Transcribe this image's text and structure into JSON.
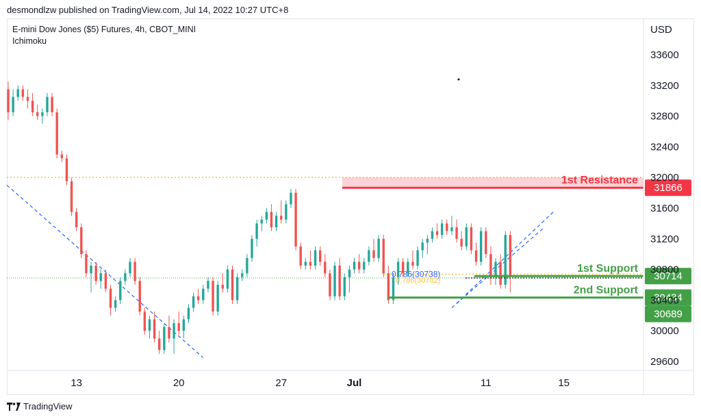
{
  "publisher": "desmondlzw published on TradingView.com, Jul 14, 2022 10:27 UTC+8",
  "legend": {
    "line1": "E-mini Dow Jones ($5) Futures, 4h, CBOT_MINI",
    "line2": "Ichimoku"
  },
  "brand": "TradingView",
  "axis": {
    "currency": "USD"
  },
  "colors": {
    "up": "#26a69a",
    "down": "#ef5350",
    "resistance": "#f23645",
    "support": "#43a047",
    "trend": "#2962ff",
    "dotted": "#f6c244"
  },
  "chart_data": {
    "type": "candlestick",
    "ylim": [
      29500,
      33900
    ],
    "y_ticks": [
      29600,
      30000,
      30400,
      30800,
      31200,
      31600,
      32000,
      32400,
      32800,
      33200,
      33600
    ],
    "x_ticks": [
      {
        "label": "13",
        "index": 14
      },
      {
        "label": "20",
        "index": 35
      },
      {
        "label": "27",
        "index": 56
      },
      {
        "label": "Jul",
        "index": 71
      },
      {
        "label": "11",
        "index": 98
      },
      {
        "label": "15",
        "index": 114
      }
    ],
    "candles": [
      [
        33150,
        33250,
        32750,
        32850
      ],
      [
        32850,
        33150,
        32800,
        33050
      ],
      [
        33050,
        33200,
        33000,
        33150
      ],
      [
        33150,
        33200,
        33000,
        33050
      ],
      [
        33050,
        33150,
        32900,
        33000
      ],
      [
        33000,
        33100,
        32800,
        32850
      ],
      [
        32850,
        32950,
        32750,
        32800
      ],
      [
        32800,
        32900,
        32700,
        32850
      ],
      [
        32850,
        33100,
        32800,
        33050
      ],
      [
        33050,
        33100,
        32800,
        32850
      ],
      [
        32850,
        32900,
        32250,
        32300
      ],
      [
        32300,
        32350,
        32200,
        32250
      ],
      [
        32250,
        32300,
        31900,
        31950
      ],
      [
        31950,
        32000,
        31500,
        31550
      ],
      [
        31550,
        31600,
        31300,
        31350
      ],
      [
        31350,
        31400,
        30950,
        31000
      ],
      [
        31000,
        31050,
        30700,
        30750
      ],
      [
        30750,
        30900,
        30500,
        30850
      ],
      [
        30850,
        30900,
        30600,
        30650
      ],
      [
        30650,
        30800,
        30550,
        30750
      ],
      [
        30750,
        30800,
        30500,
        30550
      ],
      [
        30550,
        30600,
        30200,
        30300
      ],
      [
        30300,
        30450,
        30250,
        30400
      ],
      [
        30400,
        30700,
        30350,
        30650
      ],
      [
        30650,
        30800,
        30600,
        30750
      ],
      [
        30750,
        30950,
        30700,
        30900
      ],
      [
        30900,
        30950,
        30600,
        30650
      ],
      [
        30650,
        30700,
        30200,
        30250
      ],
      [
        30250,
        30300,
        29950,
        30000
      ],
      [
        30000,
        30200,
        29900,
        30150
      ],
      [
        30150,
        30250,
        29850,
        29900
      ],
      [
        29900,
        30000,
        29700,
        29750
      ],
      [
        29750,
        30100,
        29700,
        30050
      ],
      [
        30050,
        30200,
        29850,
        29900
      ],
      [
        29900,
        30150,
        29700,
        30100
      ],
      [
        30100,
        30250,
        29950,
        30000
      ],
      [
        30000,
        30200,
        29900,
        30150
      ],
      [
        30150,
        30350,
        30100,
        30300
      ],
      [
        30300,
        30500,
        30250,
        30450
      ],
      [
        30450,
        30550,
        30350,
        30400
      ],
      [
        30400,
        30600,
        30350,
        30550
      ],
      [
        30550,
        30700,
        30500,
        30650
      ],
      [
        30650,
        30700,
        30200,
        30250
      ],
      [
        30250,
        30650,
        30200,
        30600
      ],
      [
        30600,
        30750,
        30500,
        30550
      ],
      [
        30550,
        30850,
        30500,
        30800
      ],
      [
        30800,
        30850,
        30350,
        30400
      ],
      [
        30400,
        30750,
        30350,
        30700
      ],
      [
        30700,
        30800,
        30650,
        30750
      ],
      [
        30750,
        31000,
        30700,
        30950
      ],
      [
        30950,
        31250,
        30900,
        31200
      ],
      [
        31200,
        31450,
        31100,
        31400
      ],
      [
        31400,
        31500,
        31300,
        31450
      ],
      [
        31450,
        31600,
        31400,
        31550
      ],
      [
        31550,
        31650,
        31300,
        31350
      ],
      [
        31350,
        31550,
        31300,
        31500
      ],
      [
        31500,
        31700,
        31400,
        31450
      ],
      [
        31450,
        31700,
        31400,
        31650
      ],
      [
        31650,
        31850,
        31600,
        31800
      ],
      [
        31800,
        31850,
        31050,
        31100
      ],
      [
        31100,
        31150,
        30800,
        30850
      ],
      [
        30850,
        30950,
        30800,
        30900
      ],
      [
        30900,
        31050,
        30800,
        30850
      ],
      [
        30850,
        31100,
        30800,
        31050
      ],
      [
        31050,
        31100,
        30850,
        30900
      ],
      [
        30900,
        31000,
        30700,
        30750
      ],
      [
        30750,
        30800,
        30400,
        30450
      ],
      [
        30450,
        30900,
        30400,
        30850
      ],
      [
        30850,
        30950,
        30400,
        30450
      ],
      [
        30450,
        30750,
        30400,
        30700
      ],
      [
        30700,
        30850,
        30500,
        30800
      ],
      [
        30800,
        30950,
        30750,
        30900
      ],
      [
        30900,
        31000,
        30750,
        30800
      ],
      [
        30800,
        30950,
        30750,
        30900
      ],
      [
        30900,
        31100,
        30850,
        31050
      ],
      [
        31050,
        31200,
        30900,
        30950
      ],
      [
        30950,
        31250,
        30900,
        31200
      ],
      [
        31200,
        31250,
        30700,
        30750
      ],
      [
        30750,
        30850,
        30350,
        30400
      ],
      [
        30400,
        30750,
        30350,
        30700
      ],
      [
        30700,
        30950,
        30600,
        30900
      ],
      [
        30900,
        30950,
        30700,
        30750
      ],
      [
        30750,
        30950,
        30700,
        30900
      ],
      [
        30900,
        31050,
        30800,
        30850
      ],
      [
        30850,
        31100,
        30800,
        31050
      ],
      [
        31050,
        31200,
        30950,
        31150
      ],
      [
        31150,
        31250,
        31000,
        31200
      ],
      [
        31200,
        31350,
        31150,
        31300
      ],
      [
        31300,
        31400,
        31200,
        31250
      ],
      [
        31250,
        31450,
        31200,
        31400
      ],
      [
        31400,
        31450,
        31250,
        31300
      ],
      [
        31300,
        31500,
        31250,
        31350
      ],
      [
        31350,
        31450,
        31150,
        31200
      ],
      [
        31200,
        31300,
        31050,
        31100
      ],
      [
        31100,
        31400,
        31050,
        31350
      ],
      [
        31350,
        31400,
        31000,
        31050
      ],
      [
        31050,
        31150,
        30850,
        30900
      ],
      [
        30900,
        31350,
        30850,
        31300
      ],
      [
        31300,
        31350,
        30950,
        31000
      ],
      [
        31000,
        31100,
        30600,
        30700
      ],
      [
        30700,
        30950,
        30600,
        30900
      ],
      [
        30900,
        31000,
        30550,
        30600
      ],
      [
        30600,
        31300,
        30550,
        31250
      ],
      [
        31250,
        31300,
        30500,
        30714
      ]
    ],
    "levels": [
      {
        "name": "1st Resistance",
        "value": 31866,
        "label": "31866"
      },
      {
        "name": "1st Support",
        "value": 30714,
        "label": "30714"
      },
      {
        "name": "2nd Support",
        "value": 30434,
        "label": "30434"
      },
      {
        "name": "",
        "value": 30689,
        "label": "30689"
      }
    ],
    "fib_label": "0.786(30738)",
    "fib_label_2": "0.786(30782)"
  }
}
